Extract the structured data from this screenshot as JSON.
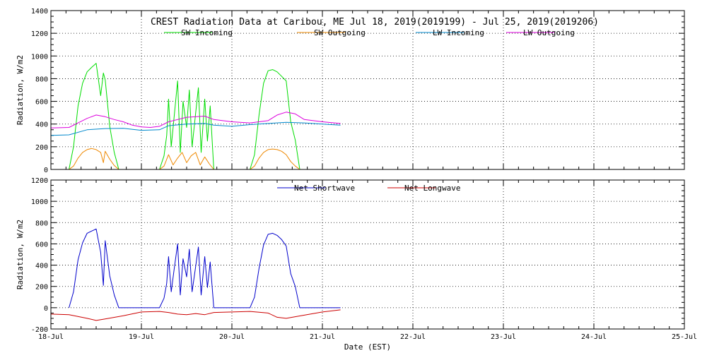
{
  "title": "CREST Radiation Data at Caribou, ME   Jul 18, 2019(2019199) - Jul 25, 2019(2019206)",
  "xlabel": "Date (EST)",
  "x_ticks": [
    "18-Jul",
    "19-Jul",
    "20-Jul",
    "21-Jul",
    "22-Jul",
    "23-Jul",
    "24-Jul",
    "25-Jul"
  ],
  "chart_data": [
    {
      "type": "line",
      "ylabel": "Radiation, W/m2",
      "xlim": [
        0,
        7
      ],
      "ylim": [
        0,
        1400
      ],
      "yticks": [
        0,
        200,
        400,
        600,
        800,
        1000,
        1200,
        1400
      ],
      "grid": true,
      "legend": "top",
      "series": [
        {
          "name": "SW Incoming",
          "color": "#00dd00",
          "x": [
            0.2,
            0.25,
            0.3,
            0.35,
            0.4,
            0.45,
            0.5,
            0.55,
            0.58,
            0.6,
            0.65,
            0.7,
            0.75,
            0.8,
            0.85,
            0.9,
            0.95,
            1.0,
            1.05,
            1.1,
            1.15,
            1.2,
            1.25,
            1.28,
            1.3,
            1.33,
            1.36,
            1.4,
            1.43,
            1.46,
            1.5,
            1.53,
            1.56,
            1.6,
            1.63,
            1.66,
            1.7,
            1.73,
            1.76,
            1.8,
            1.85,
            1.9,
            2.0,
            2.1,
            2.2,
            2.25,
            2.3,
            2.35,
            2.4,
            2.45,
            2.5,
            2.55,
            2.6,
            2.65,
            2.7,
            2.75,
            2.8,
            2.85,
            2.9,
            3.0,
            3.2
          ],
          "y": [
            0,
            200,
            560,
            760,
            860,
            900,
            935,
            650,
            850,
            790,
            380,
            150,
            0,
            0,
            0,
            0,
            0,
            0,
            0,
            0,
            0,
            0,
            120,
            300,
            620,
            200,
            450,
            780,
            150,
            600,
            370,
            700,
            200,
            500,
            720,
            150,
            620,
            250,
            560,
            0,
            0,
            0,
            0,
            0,
            0,
            130,
            480,
            760,
            870,
            880,
            860,
            820,
            780,
            420,
            260,
            0,
            0,
            0,
            0,
            0,
            0
          ]
        },
        {
          "name": "SW Outgoing",
          "color": "#ee8800",
          "x": [
            0.2,
            0.25,
            0.3,
            0.35,
            0.4,
            0.45,
            0.5,
            0.55,
            0.58,
            0.6,
            0.65,
            0.7,
            0.75,
            0.8,
            1.0,
            1.2,
            1.25,
            1.3,
            1.35,
            1.4,
            1.45,
            1.5,
            1.55,
            1.6,
            1.65,
            1.7,
            1.75,
            1.8,
            2.0,
            2.2,
            2.25,
            2.3,
            2.35,
            2.4,
            2.45,
            2.5,
            2.55,
            2.6,
            2.65,
            2.7,
            2.75,
            2.8,
            3.0,
            3.2
          ],
          "y": [
            0,
            30,
            100,
            150,
            175,
            185,
            175,
            150,
            60,
            160,
            90,
            35,
            0,
            0,
            0,
            0,
            30,
            130,
            40,
            100,
            150,
            60,
            120,
            150,
            40,
            110,
            50,
            0,
            0,
            0,
            30,
            100,
            150,
            175,
            180,
            175,
            160,
            130,
            70,
            30,
            0,
            0,
            0,
            0
          ]
        },
        {
          "name": "LW Incoming",
          "color": "#0088cc",
          "x": [
            0.0,
            0.2,
            0.4,
            0.6,
            0.8,
            1.0,
            1.2,
            1.3,
            1.5,
            1.7,
            1.8,
            2.0,
            2.2,
            2.4,
            2.6,
            2.8,
            3.0,
            3.2
          ],
          "y": [
            300,
            305,
            350,
            360,
            362,
            345,
            350,
            385,
            400,
            405,
            390,
            380,
            395,
            405,
            415,
            410,
            400,
            390
          ]
        },
        {
          "name": "LW Outgoing",
          "color": "#dd00dd",
          "x": [
            0.0,
            0.2,
            0.3,
            0.4,
            0.5,
            0.6,
            0.7,
            0.8,
            0.9,
            1.0,
            1.1,
            1.2,
            1.3,
            1.5,
            1.7,
            1.8,
            2.0,
            2.2,
            2.4,
            2.5,
            2.6,
            2.7,
            2.8,
            3.0,
            3.2
          ],
          "y": [
            365,
            370,
            410,
            450,
            480,
            465,
            440,
            420,
            390,
            375,
            370,
            380,
            420,
            460,
            470,
            440,
            420,
            410,
            430,
            480,
            505,
            490,
            440,
            420,
            405
          ]
        }
      ]
    },
    {
      "type": "line",
      "ylabel": "Radiation, W/m2",
      "xlim": [
        0,
        7
      ],
      "ylim": [
        -200,
        1200
      ],
      "yticks": [
        -200,
        0,
        200,
        400,
        600,
        800,
        1000,
        1200
      ],
      "grid": true,
      "legend": "top",
      "series": [
        {
          "name": "Net Shortwave",
          "color": "#0000cc",
          "x": [
            0.2,
            0.25,
            0.3,
            0.35,
            0.4,
            0.45,
            0.5,
            0.55,
            0.58,
            0.6,
            0.65,
            0.7,
            0.75,
            0.8,
            1.0,
            1.2,
            1.25,
            1.28,
            1.3,
            1.33,
            1.36,
            1.4,
            1.43,
            1.46,
            1.5,
            1.53,
            1.56,
            1.6,
            1.63,
            1.66,
            1.7,
            1.73,
            1.76,
            1.8,
            2.0,
            2.2,
            2.25,
            2.3,
            2.35,
            2.4,
            2.45,
            2.5,
            2.55,
            2.6,
            2.65,
            2.7,
            2.75,
            2.8,
            3.0,
            3.2
          ],
          "y": [
            0,
            150,
            450,
            610,
            700,
            720,
            740,
            520,
            210,
            630,
            300,
            120,
            0,
            0,
            0,
            0,
            90,
            230,
            480,
            150,
            350,
            600,
            120,
            460,
            290,
            550,
            150,
            390,
            570,
            120,
            480,
            190,
            430,
            0,
            0,
            0,
            100,
            370,
            590,
            690,
            700,
            680,
            640,
            580,
            320,
            200,
            0,
            0,
            0,
            0
          ]
        },
        {
          "name": "Net Longwave",
          "color": "#cc0000",
          "x": [
            0.0,
            0.2,
            0.4,
            0.5,
            0.6,
            0.8,
            1.0,
            1.2,
            1.3,
            1.4,
            1.5,
            1.6,
            1.7,
            1.8,
            2.0,
            2.2,
            2.4,
            2.5,
            2.6,
            2.8,
            3.0,
            3.2
          ],
          "y": [
            -60,
            -65,
            -100,
            -120,
            -105,
            -75,
            -40,
            -35,
            -45,
            -60,
            -65,
            -55,
            -65,
            -45,
            -40,
            -35,
            -50,
            -90,
            -100,
            -70,
            -40,
            -20
          ]
        }
      ]
    }
  ]
}
